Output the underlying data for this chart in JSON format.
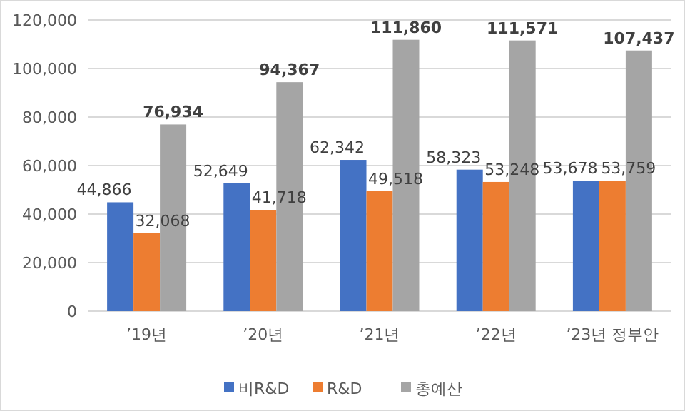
{
  "chart_data": {
    "type": "bar",
    "categories": [
      "’19년",
      "’20년",
      "’21년",
      "’22년",
      "’23년 정부안"
    ],
    "series": [
      {
        "name": "비R&D",
        "color": "#4472c4",
        "values": [
          44866,
          52649,
          62342,
          58323,
          53678
        ],
        "value_labels": [
          "44,866",
          "52,649",
          "62,342",
          "58,323",
          "53,678"
        ]
      },
      {
        "name": "R&D",
        "color": "#ed7d31",
        "values": [
          32068,
          41718,
          49518,
          53248,
          53759
        ],
        "value_labels": [
          "32,068",
          "41,718",
          "49,518",
          "53,248",
          "53,759"
        ]
      },
      {
        "name": "총예산",
        "color": "#a5a5a5",
        "values": [
          76934,
          94367,
          111860,
          111571,
          107437
        ],
        "value_labels": [
          "76,934",
          "94,367",
          "111,860",
          "111,571",
          "107,437"
        ]
      }
    ],
    "ylim": [
      0,
      120000
    ],
    "yticks": [
      {
        "value": 0,
        "label": "0"
      },
      {
        "value": 20000,
        "label": "20,000"
      },
      {
        "value": 40000,
        "label": "40,000"
      },
      {
        "value": 60000,
        "label": "60,000"
      },
      {
        "value": 80000,
        "label": "80,000"
      },
      {
        "value": 100000,
        "label": "100,000"
      },
      {
        "value": 120000,
        "label": "120,000"
      }
    ],
    "grid": "y",
    "legend": "bottom"
  }
}
